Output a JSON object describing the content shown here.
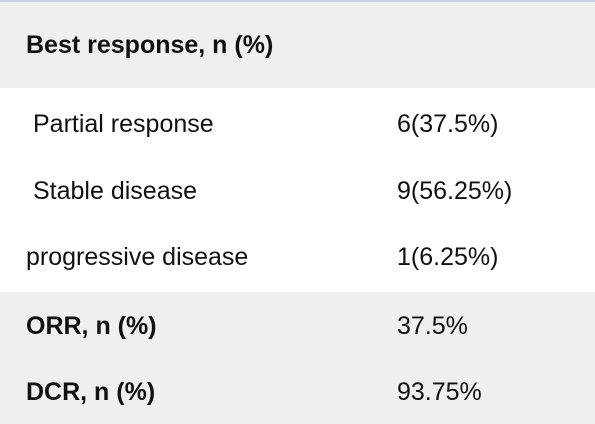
{
  "table": {
    "header": {
      "label": "Best response, n (%)"
    },
    "rows": [
      {
        "label": "Partial response",
        "value": "6(37.5%)"
      },
      {
        "label": "Stable disease",
        "value": "9(56.25%)"
      },
      {
        "label": "progressive disease",
        "value": "1(6.25%)"
      }
    ],
    "summary": [
      {
        "label": "ORR, n (%)",
        "value": "37.5%"
      },
      {
        "label": "DCR, n (%)",
        "value": "93.75%"
      }
    ]
  },
  "colors": {
    "shaded_row": "#efefef",
    "border": "#c9d3e3",
    "text": "#111111"
  }
}
